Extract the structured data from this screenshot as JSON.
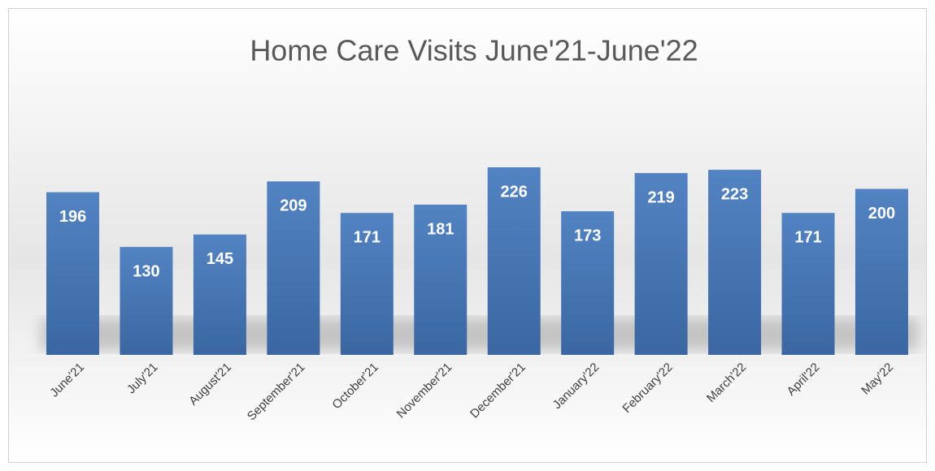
{
  "chart_data": {
    "type": "bar",
    "title": "Home Care Visits June'21-June'22",
    "categories": [
      "June'21",
      "July'21",
      "August'21",
      "September'21",
      "October'21",
      "November'21",
      "December'21",
      "January'22",
      "February'22",
      "March'22",
      "April'22",
      "May'22"
    ],
    "values": [
      196,
      130,
      145,
      209,
      171,
      181,
      226,
      173,
      219,
      223,
      171,
      200
    ],
    "color": "#4a7ab8"
  }
}
